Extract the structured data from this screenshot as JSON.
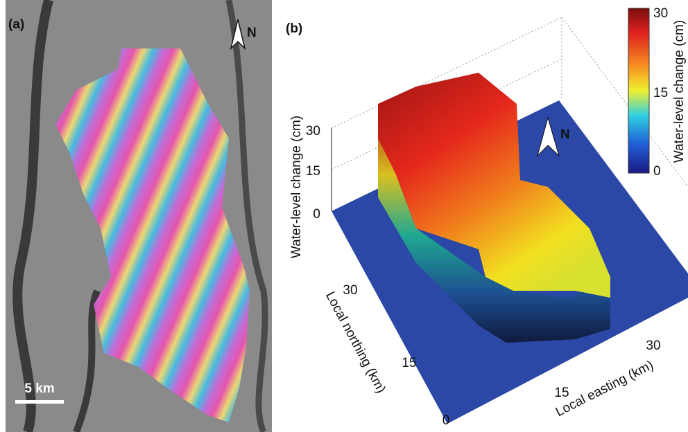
{
  "panel_a": {
    "label": "(a)",
    "north": "N",
    "scale_bar": "5 km"
  },
  "panel_b": {
    "label": "(b)",
    "north": "N",
    "z_axis": {
      "label": "Water-level change (cm)",
      "ticks": [
        0,
        15,
        30
      ]
    },
    "northing_axis": {
      "label": "Local northing (km)",
      "ticks": [
        0,
        15,
        30
      ]
    },
    "easting_axis": {
      "label": "Local easting (km)",
      "ticks": [
        15,
        30
      ]
    },
    "colorbar": {
      "label": "Water-level change (cm)",
      "ticks": [
        0,
        15,
        30
      ]
    }
  }
}
